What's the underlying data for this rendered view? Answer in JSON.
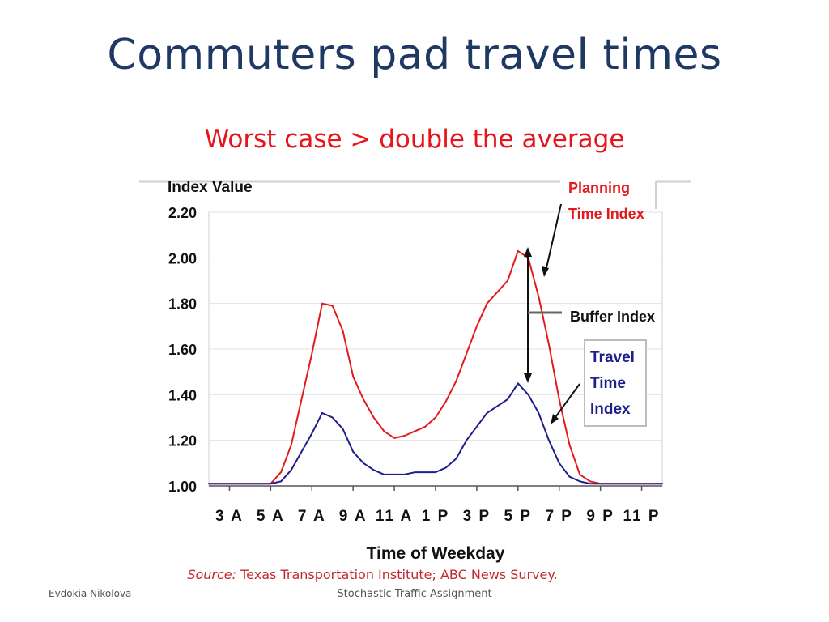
{
  "slide": {
    "title": "Commuters pad travel times",
    "subtitle": "Worst case > double the average",
    "source_label": "Source:",
    "source_text": "Texas Transportation Institute; ABC News Survey.",
    "footer_author": "Evdokia Nikolova",
    "footer_topic": "Stochastic Traffic Assignment"
  },
  "chart_data": {
    "type": "line",
    "ylabel": "Index Value",
    "xlabel": "Time of Weekday",
    "ylim": [
      1.0,
      2.2
    ],
    "yticks": [
      "1.00",
      "1.20",
      "1.40",
      "1.60",
      "1.80",
      "2.00",
      "2.20"
    ],
    "xlim": [
      2,
      24
    ],
    "xticks": [
      {
        "x": 3,
        "label": "3 A"
      },
      {
        "x": 5,
        "label": "5 A"
      },
      {
        "x": 7,
        "label": "7 A"
      },
      {
        "x": 9,
        "label": "9 A"
      },
      {
        "x": 11,
        "label": "11 A"
      },
      {
        "x": 13,
        "label": "1 P"
      },
      {
        "x": 15,
        "label": "3 P"
      },
      {
        "x": 17,
        "label": "5 P"
      },
      {
        "x": 19,
        "label": "7 P"
      },
      {
        "x": 21,
        "label": "9 P"
      },
      {
        "x": 23,
        "label": "11 P"
      }
    ],
    "grid": true,
    "series": [
      {
        "name": "Planning Time Index",
        "color": "#e31a1c",
        "x": [
          2,
          3,
          4,
          5,
          5.5,
          6,
          6.5,
          7,
          7.5,
          8,
          8.5,
          9,
          9.5,
          10,
          10.5,
          11,
          11.5,
          12,
          12.5,
          13,
          13.5,
          14,
          14.5,
          15,
          15.5,
          16,
          16.5,
          17,
          17.5,
          18,
          18.5,
          19,
          19.5,
          20,
          20.5,
          21,
          22,
          23,
          24
        ],
        "y": [
          1.01,
          1.01,
          1.01,
          1.01,
          1.06,
          1.18,
          1.38,
          1.58,
          1.8,
          1.79,
          1.68,
          1.48,
          1.38,
          1.3,
          1.24,
          1.21,
          1.22,
          1.24,
          1.26,
          1.3,
          1.37,
          1.46,
          1.58,
          1.7,
          1.8,
          1.85,
          1.9,
          2.03,
          2.0,
          1.83,
          1.62,
          1.38,
          1.18,
          1.05,
          1.02,
          1.01,
          1.01,
          1.01,
          1.01
        ]
      },
      {
        "name": "Travel Time Index",
        "color": "#1e1e8c",
        "x": [
          2,
          3,
          4,
          5,
          5.5,
          6,
          6.5,
          7,
          7.5,
          8,
          8.5,
          9,
          9.5,
          10,
          10.5,
          11,
          11.5,
          12,
          12.5,
          13,
          13.5,
          14,
          14.5,
          15,
          15.5,
          16,
          16.5,
          17,
          17.5,
          18,
          18.5,
          19,
          19.5,
          20,
          20.5,
          21,
          22,
          23,
          24
        ],
        "y": [
          1.01,
          1.01,
          1.01,
          1.01,
          1.02,
          1.07,
          1.15,
          1.23,
          1.32,
          1.3,
          1.25,
          1.15,
          1.1,
          1.07,
          1.05,
          1.05,
          1.05,
          1.06,
          1.06,
          1.06,
          1.08,
          1.12,
          1.2,
          1.26,
          1.32,
          1.35,
          1.38,
          1.45,
          1.4,
          1.32,
          1.2,
          1.1,
          1.04,
          1.02,
          1.01,
          1.01,
          1.01,
          1.01,
          1.01
        ]
      }
    ],
    "annotations": [
      {
        "name": "planning-label",
        "lines": [
          "Planning",
          "Time Index"
        ],
        "color": "#e31a1c"
      },
      {
        "name": "buffer-label",
        "lines": [
          "Buffer Index"
        ],
        "color": "#111111"
      },
      {
        "name": "travel-label",
        "lines": [
          "Travel",
          "Time",
          "Index"
        ],
        "color": "#1e1e8c"
      }
    ]
  }
}
